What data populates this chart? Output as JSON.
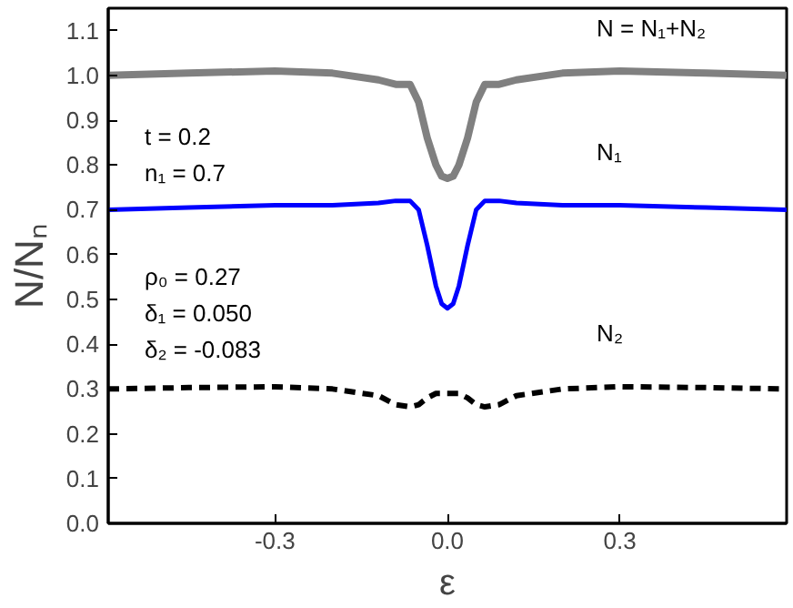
{
  "chart_data": {
    "type": "line",
    "xlabel": "ε",
    "ylabel": "N/Nₙ",
    "x": [
      -0.59,
      -0.45,
      -0.3,
      -0.2,
      -0.12,
      -0.09,
      -0.065,
      -0.05,
      -0.035,
      -0.02,
      -0.01,
      0,
      0.01,
      0.02,
      0.035,
      0.05,
      0.065,
      0.09,
      0.12,
      0.2,
      0.3,
      0.45,
      0.59
    ],
    "series": [
      {
        "name": "N = N₁+N₂",
        "color": "#808080",
        "line_style": "solid",
        "values": [
          1.0,
          1.005,
          1.01,
          1.005,
          0.99,
          0.98,
          0.98,
          0.94,
          0.86,
          0.8,
          0.775,
          0.77,
          0.775,
          0.8,
          0.86,
          0.94,
          0.98,
          0.98,
          0.99,
          1.005,
          1.01,
          1.005,
          1.0
        ]
      },
      {
        "name": "N₁",
        "color": "#0000ff",
        "line_style": "solid",
        "values": [
          0.7,
          0.705,
          0.71,
          0.71,
          0.715,
          0.72,
          0.72,
          0.7,
          0.62,
          0.53,
          0.49,
          0.48,
          0.49,
          0.53,
          0.62,
          0.7,
          0.72,
          0.72,
          0.715,
          0.71,
          0.71,
          0.705,
          0.7
        ]
      },
      {
        "name": "N₂",
        "color": "#000000",
        "line_style": "dashed",
        "values": [
          0.3,
          0.303,
          0.305,
          0.3,
          0.285,
          0.265,
          0.26,
          0.265,
          0.28,
          0.29,
          0.29,
          0.29,
          0.29,
          0.29,
          0.28,
          0.265,
          0.26,
          0.265,
          0.285,
          0.3,
          0.305,
          0.303,
          0.3
        ]
      }
    ],
    "xlim": [
      -0.59,
      0.59
    ],
    "ylim": [
      0,
      1.15
    ],
    "xticks": [
      -0.3,
      {
        "value": 0,
        "label": "0.0"
      },
      0.3
    ],
    "yticks": [
      {
        "value": 0,
        "label": "0.0"
      },
      0.1,
      0.2,
      0.3,
      0.4,
      0.5,
      0.6,
      0.7,
      0.8,
      0.9,
      {
        "value": 1,
        "label": "1.0"
      },
      1.1
    ],
    "annotations": [
      "t = 0.2",
      "n₁ = 0.7",
      "ρ₀ = 0.27",
      "δ₁ = 0.050",
      "δ₂ = -0.083"
    ],
    "grid": false
  }
}
